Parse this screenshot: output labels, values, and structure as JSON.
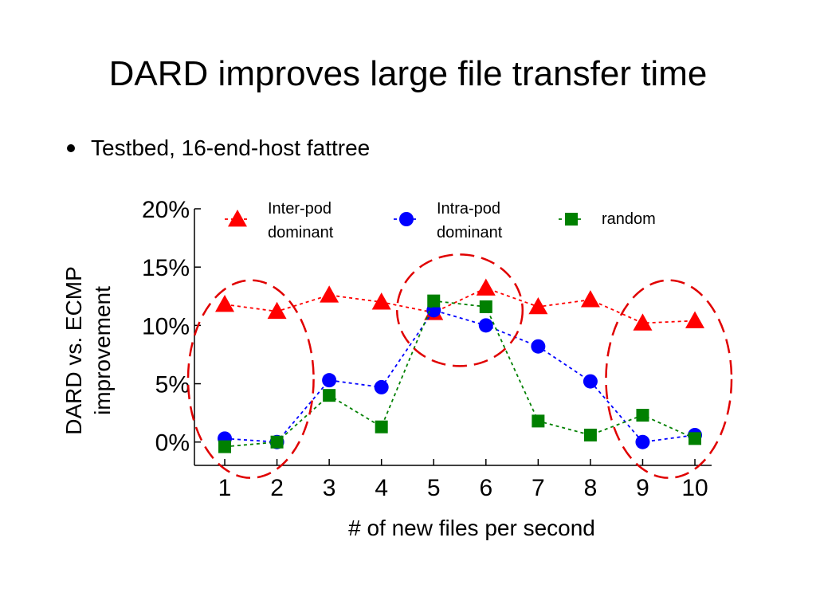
{
  "slide": {
    "title": "DARD improves large file transfer time",
    "bullet": "Testbed, 16-end-host fattree"
  },
  "chart_data": {
    "type": "line",
    "title": "",
    "xlabel": "# of new files per second",
    "ylabel_line1": "DARD vs. ECMP",
    "ylabel_line2": "improvement",
    "x": [
      1,
      2,
      3,
      4,
      5,
      6,
      7,
      8,
      9,
      10
    ],
    "x_tick_labels": [
      "1",
      "2",
      "3",
      "4",
      "5",
      "6",
      "7",
      "8",
      "9",
      "10"
    ],
    "y_ticks": [
      0,
      5,
      10,
      15,
      20
    ],
    "y_tick_labels": [
      "0%",
      "5%",
      "10%",
      "15%",
      "20%"
    ],
    "ylim": [
      -2,
      20
    ],
    "grid": false,
    "legend_position": "top",
    "series": [
      {
        "key": "inter",
        "legend_line1": "Inter-pod",
        "legend_line2": "dominant",
        "marker": "triangle",
        "color": "#ff0000",
        "values": [
          11.8,
          11.2,
          12.6,
          12.0,
          11.1,
          13.2,
          11.6,
          12.2,
          10.2,
          10.4
        ]
      },
      {
        "key": "intra",
        "legend_line1": "Intra-pod",
        "legend_line2": "dominant",
        "marker": "circle",
        "color": "#0000ff",
        "values": [
          0.3,
          0.0,
          5.3,
          4.7,
          11.3,
          10.0,
          8.2,
          5.2,
          0.0,
          0.6
        ]
      },
      {
        "key": "random",
        "legend_line1": "random",
        "legend_line2": "",
        "marker": "square",
        "color": "#008000",
        "values": [
          -0.4,
          0.0,
          4.0,
          1.3,
          12.1,
          11.6,
          1.8,
          0.6,
          2.3,
          0.3
        ]
      }
    ],
    "annotations": {
      "ellipse_color": "#e00000",
      "highlighted_x_ranges": [
        [
          1,
          2
        ],
        [
          5,
          6
        ],
        [
          9,
          10
        ]
      ]
    }
  }
}
